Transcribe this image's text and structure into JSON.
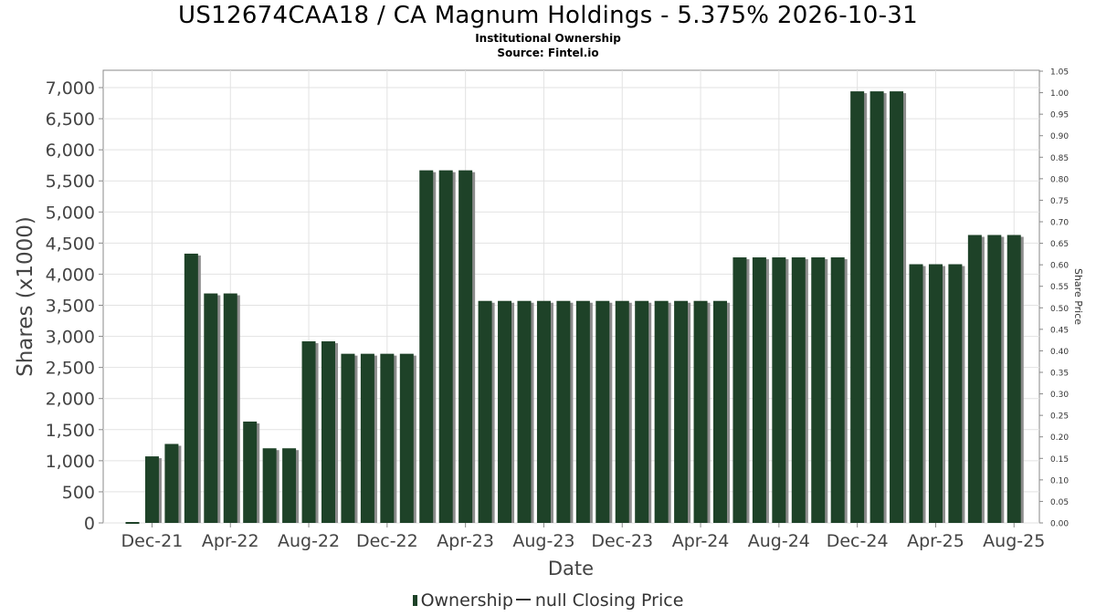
{
  "chart_data": {
    "type": "bar",
    "title": "US12674CAA18 / CA Magnum Holdings - 5.375% 2026-10-31",
    "subtitle": [
      "Institutional Ownership",
      "Source: Fintel.io"
    ],
    "xlabel": "Date",
    "ylabel": "Shares (x1000)",
    "y2label": "Share Price",
    "ylim": [
      0,
      7000
    ],
    "y_ticks": [
      "0",
      "500",
      "1,000",
      "1,500",
      "2,000",
      "2,500",
      "3,000",
      "3,500",
      "4,000",
      "4,500",
      "5,000",
      "5,500",
      "6,000",
      "6,500",
      "7,000"
    ],
    "y2lim": [
      0,
      1.05
    ],
    "y2_ticks": [
      "0.00",
      "0.05",
      "0.10",
      "0.15",
      "0.20",
      "0.25",
      "0.30",
      "0.35",
      "0.40",
      "0.45",
      "0.50",
      "0.55",
      "0.60",
      "0.65",
      "0.70",
      "0.75",
      "0.80",
      "0.85",
      "0.90",
      "0.95",
      "1.00",
      "1.05"
    ],
    "x_ticks": [
      "Dec-21",
      "Apr-22",
      "Aug-22",
      "Dec-22",
      "Apr-23",
      "Aug-23",
      "Dec-23",
      "Apr-24",
      "Aug-24",
      "Dec-24",
      "Apr-25",
      "Aug-25"
    ],
    "grid": true,
    "legend_position": "bottom",
    "series": [
      {
        "name": "Ownership",
        "color": "#1e4228",
        "values": [
          0,
          1070,
          1270,
          4330,
          3690,
          3690,
          1630,
          1200,
          1200,
          2920,
          2920,
          2720,
          2720,
          2720,
          2720,
          5670,
          5670,
          5670,
          3570,
          3570,
          3570,
          3570,
          3570,
          3570,
          3570,
          3570,
          3570,
          3570,
          3570,
          3570,
          3570,
          4270,
          4270,
          4270,
          4270,
          4270,
          4270,
          6940,
          6940,
          6940,
          4160,
          4160,
          4160,
          4630,
          4630,
          4630
        ]
      },
      {
        "name": "null Closing Price",
        "color": "#333333",
        "values": []
      }
    ]
  }
}
